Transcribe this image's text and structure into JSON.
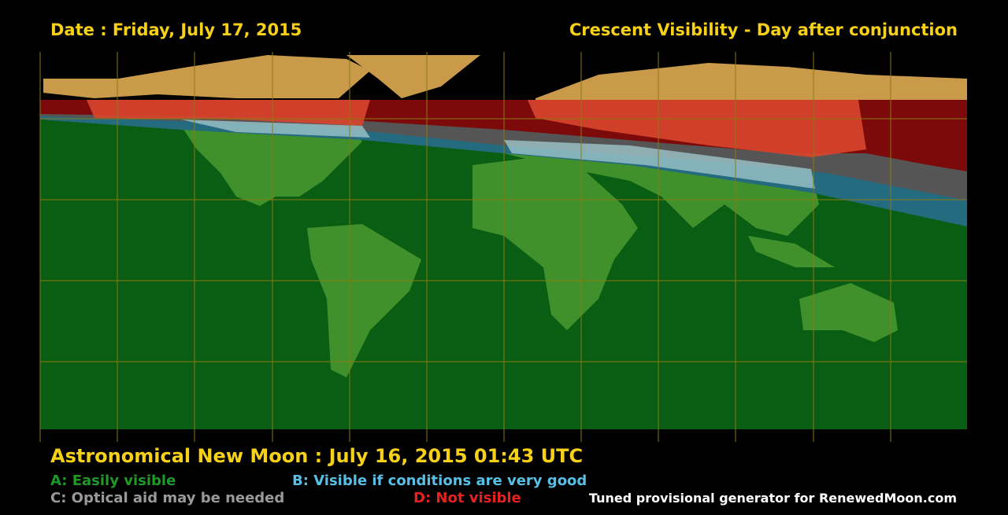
{
  "header": {
    "date": "Date : Friday, July 17, 2015",
    "title": "Crescent Visibility - Day after conjunction"
  },
  "footer": {
    "new_moon": "Astronomical New Moon : July 16, 2015 01:43 UTC",
    "legend": [
      "A: Easily visible",
      "B: Visible if conditions are very good",
      "C: Optical aid may be needed",
      "D: Not visible"
    ],
    "credit": "Tuned provisional generator for RenewedMoon.com"
  }
}
